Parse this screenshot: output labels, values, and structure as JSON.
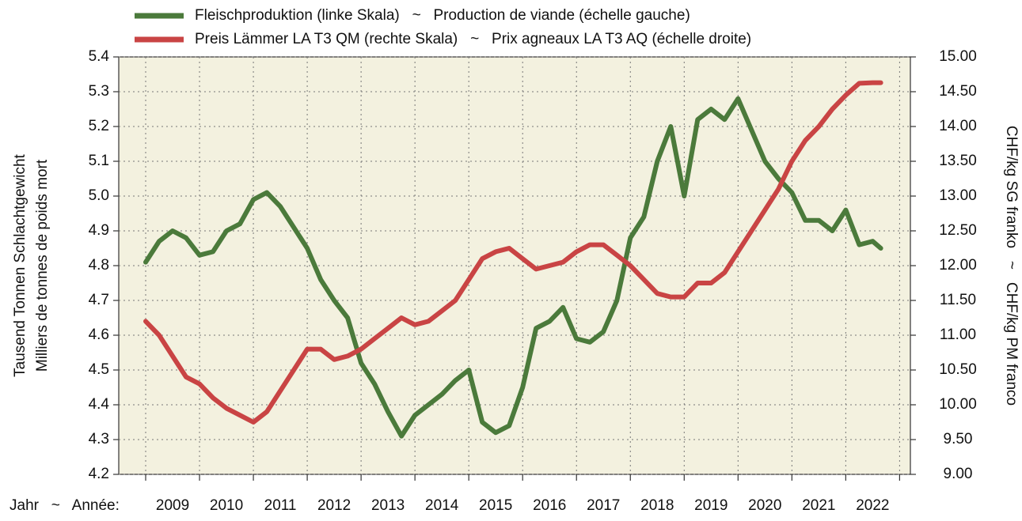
{
  "chart_data": {
    "type": "line",
    "legend": [
      "Fleischproduktion (linke Skala)   ~   Production de viande (échelle gauche)",
      "Preis Lämmer LA T3 QM (rechte Skala)   ~   Prix agneaux LA T3 AQ (échelle droite)"
    ],
    "ylabel": [
      "Tausend Tonnen Schlachtgewicht",
      "Milliers de tonnes de poids mort"
    ],
    "y2label": "CHF/kg SG franko   ~   CHF/kg PM franco",
    "xlabel": "Jahr   ~   Année:",
    "year_labels": [
      "2009",
      "2010",
      "2011",
      "2012",
      "2013",
      "2014",
      "2015",
      "2016",
      "2017",
      "2018",
      "2019",
      "2020",
      "2021",
      "2022"
    ],
    "xlim": [
      2008.5,
      2023.2
    ],
    "xticks": [
      2009,
      2010,
      2011,
      2012,
      2013,
      2014,
      2015,
      2016,
      2017,
      2018,
      2019,
      2020,
      2021,
      2022,
      2023
    ],
    "ylim": [
      4.2,
      5.4
    ],
    "yticks": [
      4.2,
      4.3,
      4.4,
      4.5,
      4.6,
      4.7,
      4.8,
      4.9,
      {
        "value": 5,
        "label": "5.0"
      },
      5.1,
      5.2,
      5.3,
      5.4
    ],
    "y2lim": [
      9,
      15
    ],
    "y2ticks": [
      {
        "value": 9,
        "label": "9.00"
      },
      {
        "value": 9.5,
        "label": "9.50"
      },
      {
        "value": 10,
        "label": "10.00"
      },
      {
        "value": 10.5,
        "label": "10.50"
      },
      {
        "value": 11,
        "label": "11.00"
      },
      {
        "value": 11.5,
        "label": "11.50"
      },
      {
        "value": 12,
        "label": "12.00"
      },
      {
        "value": 12.5,
        "label": "12.50"
      },
      {
        "value": 13,
        "label": "13.00"
      },
      {
        "value": 13.5,
        "label": "13.50"
      },
      {
        "value": 14,
        "label": "14.00"
      },
      {
        "value": 14.5,
        "label": "14.50"
      },
      {
        "value": 15,
        "label": "15.00"
      }
    ],
    "grid": true,
    "x": [
      2009,
      2009.25,
      2009.5,
      2009.75,
      2010,
      2010.25,
      2010.5,
      2010.75,
      2011,
      2011.25,
      2011.5,
      2011.75,
      2012,
      2012.25,
      2012.5,
      2012.75,
      2013,
      2013.25,
      2013.5,
      2013.75,
      2014,
      2014.25,
      2014.5,
      2014.75,
      2015,
      2015.25,
      2015.5,
      2015.75,
      2016,
      2016.25,
      2016.5,
      2016.75,
      2017,
      2017.25,
      2017.5,
      2017.75,
      2018,
      2018.25,
      2018.5,
      2018.75,
      2019,
      2019.25,
      2019.5,
      2019.75,
      2020,
      2020.25,
      2020.5,
      2020.75,
      2021,
      2021.25,
      2021.5,
      2021.75,
      2022,
      2022.25,
      2022.5,
      2022.65
    ],
    "series": [
      {
        "name": "Fleischproduktion (linke Skala)   ~   Production de viande (échelle gauche)",
        "color": "#4b7a3b",
        "axis": "y",
        "values": [
          4.81,
          4.87,
          4.9,
          4.88,
          4.83,
          4.84,
          4.9,
          4.92,
          4.99,
          5.01,
          4.97,
          4.91,
          4.85,
          4.76,
          4.7,
          4.65,
          4.52,
          4.46,
          4.38,
          4.31,
          4.37,
          4.4,
          4.43,
          4.47,
          4.5,
          4.35,
          4.32,
          4.34,
          4.45,
          4.62,
          4.64,
          4.68,
          4.59,
          4.58,
          4.61,
          4.7,
          4.88,
          4.94,
          5.1,
          5.2,
          5.0,
          5.22,
          5.25,
          5.22,
          5.28,
          5.19,
          5.1,
          5.05,
          5.01,
          4.93,
          4.93,
          4.9,
          4.96,
          4.86,
          4.87,
          4.85
        ]
      },
      {
        "name": "Preis Lämmer LA T3 QM (rechte Skala)   ~   Prix agneaux LA T3 AQ (échelle droite)",
        "color": "#c94444",
        "axis": "y2",
        "values": [
          11.2,
          11.0,
          10.7,
          10.4,
          10.3,
          10.1,
          9.95,
          9.85,
          9.75,
          9.9,
          10.2,
          10.5,
          10.8,
          10.8,
          10.65,
          10.7,
          10.8,
          10.95,
          11.1,
          11.25,
          11.15,
          11.2,
          11.35,
          11.5,
          11.8,
          12.1,
          12.2,
          12.25,
          12.1,
          11.95,
          12.0,
          12.05,
          12.2,
          12.3,
          12.3,
          12.15,
          12.0,
          11.8,
          11.6,
          11.55,
          11.55,
          11.75,
          11.75,
          11.9,
          12.2,
          12.5,
          12.8,
          13.1,
          13.5,
          13.8,
          14.0,
          14.25,
          14.45,
          14.62,
          14.63,
          14.63
        ]
      }
    ]
  }
}
